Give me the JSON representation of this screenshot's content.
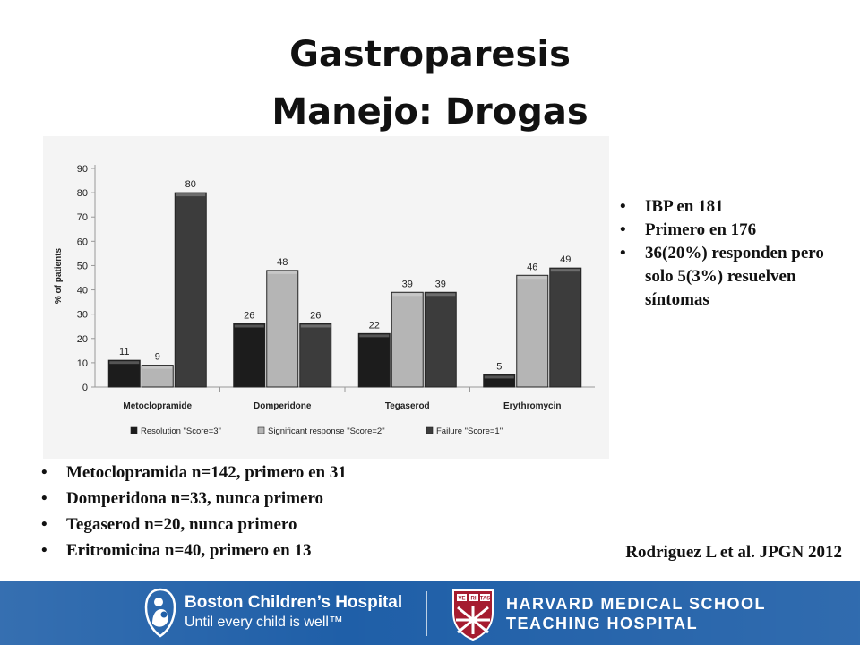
{
  "slide": {
    "title_line1": "Gastroparesis",
    "title_line2": "Manejo: Drogas"
  },
  "chart_data": {
    "type": "bar",
    "ylabel": "% of patients",
    "ylim": [
      0,
      90
    ],
    "yticks": [
      0,
      10,
      20,
      30,
      40,
      50,
      60,
      70,
      80,
      90
    ],
    "categories": [
      "Metoclopramide",
      "Domperidone",
      "Tegaserod",
      "Erythromycin"
    ],
    "series": [
      {
        "name": "Resolution \"Score=3\"",
        "values": [
          11,
          26,
          22,
          5
        ],
        "color": "#1c1c1c"
      },
      {
        "name": "Significant response \"Score=2\"",
        "values": [
          9,
          48,
          39,
          46
        ],
        "color": "#b5b5b5"
      },
      {
        "name": "Failure \"Score=1\"",
        "values": [
          80,
          26,
          39,
          49
        ],
        "color": "#3c3c3c"
      }
    ],
    "legend_position": "bottom",
    "grid": false
  },
  "side_bullets": [
    "IBP en 181",
    "Primero en 176",
    "36(20%) responden pero solo 5(3%) resuelven síntomas"
  ],
  "bottom_bullets": [
    "Metoclopramida n=142, primero en 31",
    "Domperidona n=33, nunca primero",
    "Tegaserod n=20, nunca primero",
    "Eritromicina n=40, primero en 13"
  ],
  "citation": "Rodriguez L et al. JPGN 2012",
  "footer": {
    "bch_name": "Boston Children’s Hospital",
    "bch_tagline": "Until every child is well™",
    "hms_line1": "HARVARD MEDICAL SCHOOL",
    "hms_line2": "TEACHING HOSPITAL",
    "shield_letters": [
      "VE",
      "RI",
      "TAS"
    ],
    "band_color": "#1f5fa8"
  }
}
